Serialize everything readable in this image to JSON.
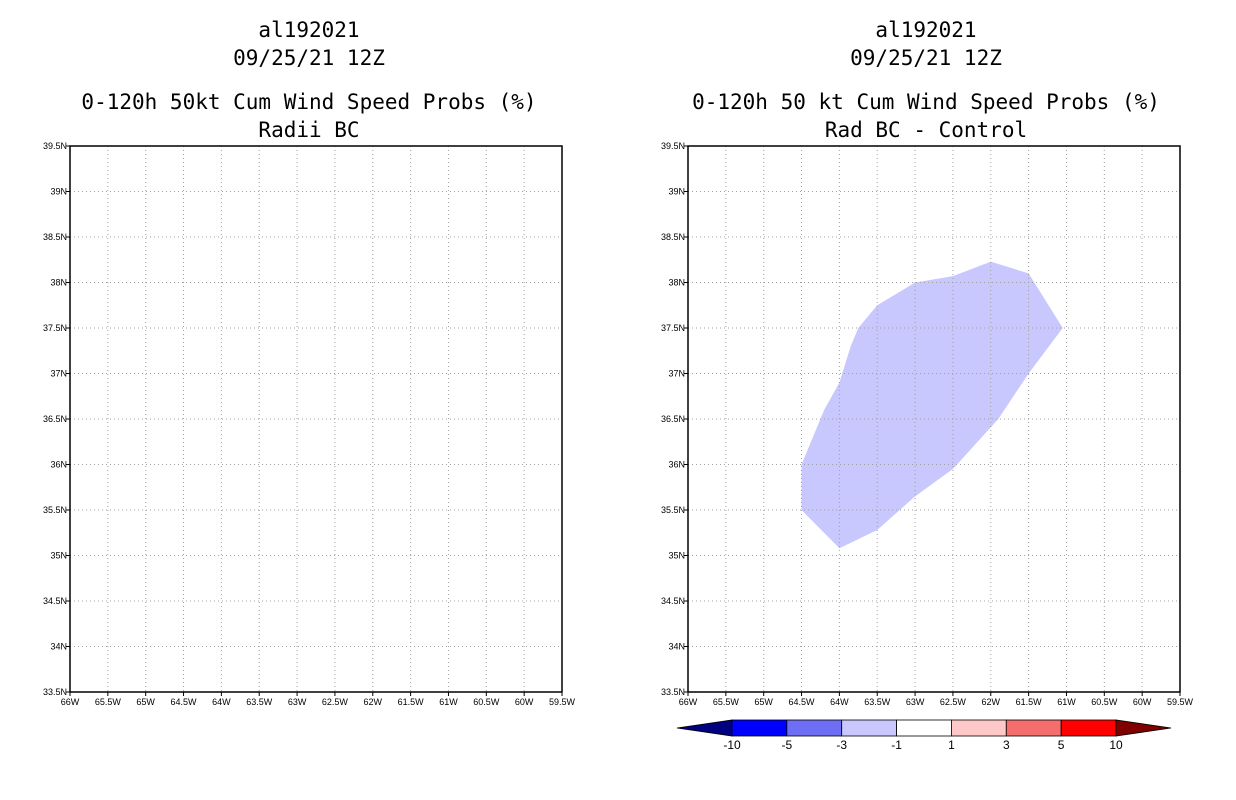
{
  "panels": [
    {
      "title_line1": "al192021",
      "title_line2": "09/25/21 12Z",
      "title_line3": "0-120h 50kt Cum Wind Speed Probs (%)",
      "title_line4": "Radii BC"
    },
    {
      "title_line1": "al192021",
      "title_line2": "09/25/21 12Z",
      "title_line3": "0-120h 50 kt Cum Wind Speed Probs (%)",
      "title_line4": "Rad BC - Control"
    }
  ],
  "chart_data": [
    {
      "type": "map",
      "x_ticks": [
        "66W",
        "65.5W",
        "65W",
        "64.5W",
        "64W",
        "63.5W",
        "63W",
        "62.5W",
        "62W",
        "61.5W",
        "61W",
        "60.5W",
        "60W",
        "59.5W"
      ],
      "y_ticks": [
        "33.5N",
        "34N",
        "34.5N",
        "35N",
        "35.5N",
        "36N",
        "36.5N",
        "37N",
        "37.5N",
        "38N",
        "38.5N",
        "39N",
        "39.5N"
      ],
      "xlim": [
        -66,
        -59.5
      ],
      "ylim": [
        33.5,
        39.5
      ],
      "grid": true,
      "regions": []
    },
    {
      "type": "map",
      "x_ticks": [
        "66W",
        "65.5W",
        "65W",
        "64.5W",
        "64W",
        "63.5W",
        "63W",
        "62.5W",
        "62W",
        "61.5W",
        "61W",
        "60.5W",
        "60W",
        "59.5W"
      ],
      "y_ticks": [
        "33.5N",
        "34N",
        "34.5N",
        "35N",
        "35.5N",
        "36N",
        "36.5N",
        "37N",
        "37.5N",
        "38N",
        "38.5N",
        "39N",
        "39.5N"
      ],
      "xlim": [
        -66,
        -59.5
      ],
      "ylim": [
        33.5,
        39.5
      ],
      "grid": true,
      "regions": [
        {
          "range": "-3 to -1",
          "color": "#c8c8ff",
          "outline": [
            [
              -64.5,
              35.5
            ],
            [
              -64.5,
              36.0
            ],
            [
              -64.2,
              36.6
            ],
            [
              -64.0,
              36.9
            ],
            [
              -63.85,
              37.3
            ],
            [
              -63.75,
              37.5
            ],
            [
              -63.5,
              37.75
            ],
            [
              -63.0,
              38.0
            ],
            [
              -62.5,
              38.07
            ],
            [
              -62.0,
              38.23
            ],
            [
              -61.5,
              38.1
            ],
            [
              -61.35,
              37.9
            ],
            [
              -61.05,
              37.5
            ],
            [
              -61.5,
              37.0
            ],
            [
              -61.9,
              36.5
            ],
            [
              -62.5,
              35.95
            ],
            [
              -63.0,
              35.65
            ],
            [
              -63.5,
              35.28
            ],
            [
              -64.0,
              35.08
            ]
          ]
        }
      ],
      "colorbar": {
        "colors": [
          "#000080",
          "#0000ff",
          "#6e6ef5",
          "#c8c8ff",
          "#ffffff",
          "#ffc8c8",
          "#f56e6e",
          "#ff0000",
          "#800000"
        ],
        "labels": [
          "-10",
          "-5",
          "-3",
          "-1",
          "1",
          "3",
          "5",
          "10"
        ]
      }
    }
  ]
}
